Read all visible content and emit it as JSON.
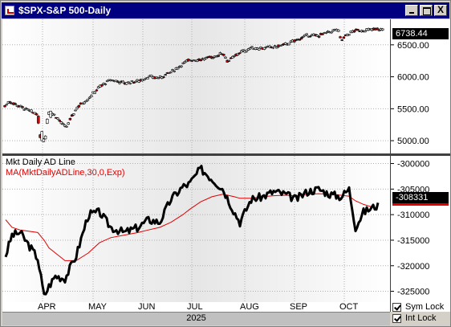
{
  "window": {
    "title": "$SPX-S&P 500-Daily",
    "buttons": {
      "minimize": "_",
      "maximize": "□",
      "close": "X"
    }
  },
  "price_pane": {
    "current_value": "6738.44",
    "y_ticks": [
      "6500.00",
      "6000.00",
      "5500.00",
      "5000.00"
    ]
  },
  "ad_pane": {
    "label_1": "Mkt Daily AD Line",
    "label_2": "MA(MktDailyADLine,30,0,Exp)",
    "current_value": "-308331",
    "y_ticks": [
      "-300000",
      "-305000",
      "-310000",
      "-315000",
      "-320000",
      "-325000"
    ]
  },
  "x_axis": {
    "months": [
      "APR",
      "MAY",
      "JUN",
      "JUL",
      "AUG",
      "SEP",
      "OCT"
    ],
    "year": "2025"
  },
  "locks": [
    {
      "label": "Sym Lock",
      "checked": true
    },
    {
      "label": "Int Lock",
      "checked": true
    }
  ],
  "colors": {
    "title_bar": "#000080",
    "down_candle": "#e00000",
    "ad_line": "#000000",
    "ma_line": "#e00000"
  },
  "chart_data": [
    {
      "type": "line",
      "title": "$SPX-S&P 500-Daily",
      "x": [
        "Mar 14",
        "Mar 20",
        "Mar 27",
        "Apr 3",
        "Apr 4",
        "Apr 7",
        "Apr 8",
        "Apr 9",
        "Apr 14",
        "Apr 21",
        "Apr 28",
        "May 5",
        "May 12",
        "May 19",
        "May 27",
        "Jun 2",
        "Jun 9",
        "Jun 16",
        "Jun 23",
        "Jun 30",
        "Jul 7",
        "Jul 14",
        "Jul 21",
        "Jul 28",
        "Aug 1",
        "Aug 8",
        "Aug 15",
        "Aug 22",
        "Aug 29",
        "Sep 5",
        "Sep 12",
        "Sep 19",
        "Sep 26",
        "Oct 3",
        "Oct 8",
        "Oct 10",
        "Oct 14",
        "Oct 20",
        "Oct 24"
      ],
      "series": [
        {
          "values": [
            5540,
            5620,
            5580,
            5400,
            5080,
            5060,
            4980,
            5450,
            5400,
            5200,
            5520,
            5660,
            5840,
            5950,
            5900,
            5930,
            6000,
            5980,
            6070,
            6200,
            6260,
            6270,
            6300,
            6370,
            6240,
            6380,
            6450,
            6450,
            6460,
            6500,
            6570,
            6650,
            6640,
            6700,
            6740,
            6560,
            6640,
            6720,
            6738.44
          ]
        }
      ],
      "ylim": [
        4800,
        6900
      ]
    },
    {
      "type": "line",
      "x": [
        "Mar 14",
        "Mar 20",
        "Mar 27",
        "Apr 3",
        "Apr 7",
        "Apr 9",
        "Apr 14",
        "Apr 21",
        "Apr 28",
        "May 5",
        "May 12",
        "May 19",
        "May 27",
        "Jun 2",
        "Jun 9",
        "Jun 16",
        "Jun 23",
        "Jun 30",
        "Jul 3",
        "Jul 10",
        "Jul 17",
        "Jul 24",
        "Jul 31",
        "Aug 1",
        "Aug 7",
        "Aug 14",
        "Aug 21",
        "Aug 28",
        "Sep 4",
        "Sep 11",
        "Sep 18",
        "Sep 25",
        "Oct 2",
        "Oct 9",
        "Oct 10",
        "Oct 16",
        "Oct 24"
      ],
      "series": [
        {
          "name": "Mkt Daily AD Line",
          "values": [
            -318000,
            -314000,
            -313500,
            -318500,
            -326000,
            -324000,
            -322000,
            -322500,
            -318000,
            -310000,
            -309500,
            -312500,
            -313500,
            -312500,
            -311000,
            -311500,
            -307000,
            -304500,
            -304000,
            -301000,
            -303000,
            -305000,
            -309500,
            -311500,
            -307000,
            -306500,
            -305500,
            -306000,
            -307000,
            -305500,
            -305000,
            -306000,
            -306500,
            -305000,
            -312500,
            -309500,
            -308331
          ]
        },
        {
          "name": "MA(MktDailyADLine,30,0,Exp)",
          "values": [
            -311000,
            -312500,
            -313000,
            -313500,
            -315000,
            -316500,
            -317500,
            -319000,
            -319000,
            -317500,
            -315500,
            -314500,
            -314000,
            -313500,
            -313000,
            -312500,
            -311500,
            -310000,
            -309000,
            -307500,
            -306500,
            -306000,
            -306500,
            -306800,
            -306800,
            -306500,
            -306300,
            -306200,
            -306300,
            -306000,
            -305900,
            -306000,
            -306200,
            -306400,
            -307300,
            -308000,
            -308700
          ]
        }
      ],
      "ylim": [
        -329000,
        -298500
      ]
    }
  ]
}
